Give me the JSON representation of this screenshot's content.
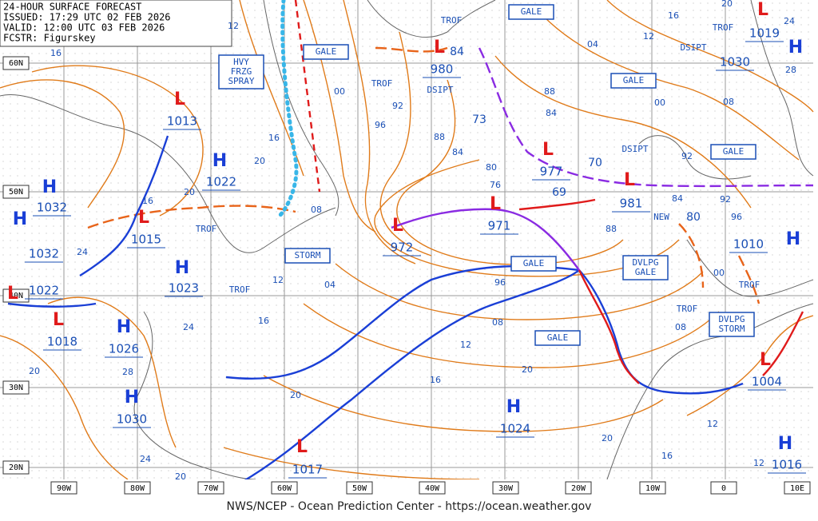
{
  "header": {
    "lines": [
      "24-HOUR SURFACE FORECAST",
      "ISSUED: 17:29 UTC 02 FEB 2026",
      "VALID: 12:00 UTC 03 FEB 2026",
      "FCSTR: Figurskey"
    ]
  },
  "footer": "NWS/NCEP - Ocean Prediction Center - https://ocean.weather.gov",
  "lat_labels": [
    "60N",
    "50N",
    "40N",
    "30N",
    "20N"
  ],
  "lon_labels": [
    "90W",
    "80W",
    "70W",
    "60W",
    "50W",
    "40W",
    "30W",
    "20W",
    "10W",
    "0",
    "10E"
  ],
  "centers": [
    {
      "kind": "H",
      "pressure": "1032"
    },
    {
      "kind": "H",
      "pressure": "1032"
    },
    {
      "kind": "H",
      "pressure": "1022"
    },
    {
      "kind": "L",
      "pressure": "1013"
    },
    {
      "kind": "L",
      "pressure": "1015"
    },
    {
      "kind": "H",
      "pressure": "1023"
    },
    {
      "kind": "L",
      "pressure": "1022"
    },
    {
      "kind": "L",
      "pressure": "1018"
    },
    {
      "kind": "H",
      "pressure": "1026"
    },
    {
      "kind": "H",
      "pressure": "1030"
    },
    {
      "kind": "L",
      "pressure": "1017"
    },
    {
      "kind": "L",
      "pressure": "972"
    },
    {
      "kind": "L",
      "pressure": "971"
    },
    {
      "kind": "L",
      "pressure": "977"
    },
    {
      "kind": "L",
      "pressure": "981"
    },
    {
      "kind": "L",
      "pressure": "980"
    },
    {
      "kind": "H",
      "pressure": "1024"
    },
    {
      "kind": "L",
      "pressure": "1004"
    },
    {
      "kind": "H",
      "pressure": "1016"
    },
    {
      "kind": "L",
      "pressure": "1019"
    },
    {
      "kind": "H",
      "pressure": "1030"
    },
    {
      "kind": "H",
      "pressure": "1010"
    }
  ],
  "forecast_pressures": [
    "69",
    "70",
    "73",
    "80",
    "84"
  ],
  "warning_boxes": [
    [
      "GALE"
    ],
    [
      "HVY",
      "FRZG",
      "SPRAY"
    ],
    [
      "GALE"
    ],
    [
      "GALE"
    ],
    [
      "GALE"
    ],
    [
      "STORM"
    ],
    [
      "GALE"
    ],
    [
      "GALE"
    ],
    [
      "DVLPG",
      "GALE"
    ],
    [
      "DVLPG",
      "STORM"
    ]
  ],
  "feature_labels": [
    "TROF",
    "TROF",
    "DSIPT",
    "DSIPT",
    "TROF",
    "DSIPT",
    "TROF",
    "TROF",
    "TROF",
    "TROF",
    "NEW"
  ],
  "isobar_labels": [
    "16",
    "12",
    "00",
    "92",
    "96",
    "88",
    "84",
    "80",
    "76",
    "16",
    "20",
    "20",
    "16",
    "08",
    "24",
    "12",
    "04",
    "16",
    "24",
    "20",
    "28",
    "20",
    "24",
    "20",
    "16",
    "12",
    "08",
    "96",
    "20",
    "20",
    "16",
    "12",
    "08",
    "00",
    "88",
    "96",
    "92",
    "84",
    "92",
    "04",
    "00",
    "08",
    "12",
    "16",
    "20",
    "24",
    "28",
    "88",
    "84",
    "12"
  ]
}
